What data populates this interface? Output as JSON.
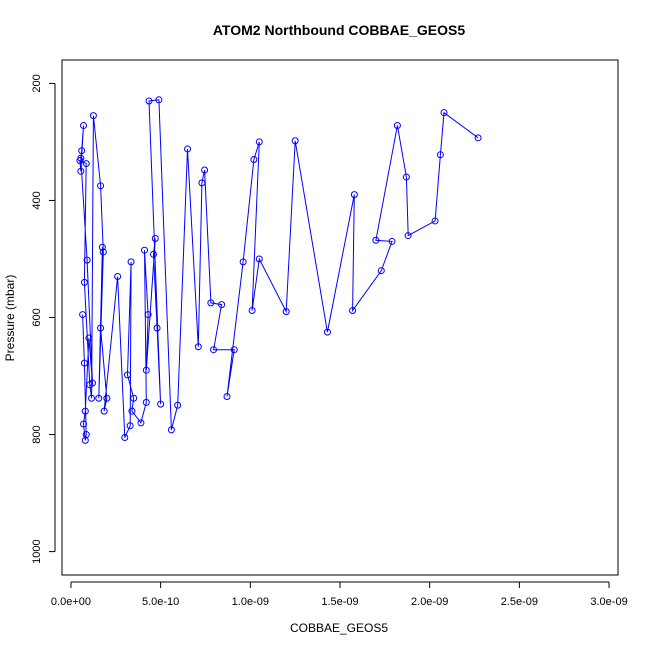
{
  "chart_data": {
    "type": "scatter",
    "title": "ATOM2 Northbound COBBAE_GEOS5",
    "xlabel": "COBBAE_GEOS5",
    "ylabel": "Pressure (mbar)",
    "xlim": [
      -5e-11,
      3.05e-09
    ],
    "ylim": [
      1040,
      160
    ],
    "y_reversed": true,
    "x_ticks": [
      {
        "value": 0,
        "label": "0.0e+00"
      },
      {
        "value": 5e-10,
        "label": "5.0e-10"
      },
      {
        "value": 1e-09,
        "label": "1.0e-09"
      },
      {
        "value": 1.5e-09,
        "label": "1.5e-09"
      },
      {
        "value": 2e-09,
        "label": "2.0e-09"
      },
      {
        "value": 2.5e-09,
        "label": "2.5e-09"
      },
      {
        "value": 3e-09,
        "label": "3.0e-09"
      }
    ],
    "y_ticks": [
      {
        "value": 200,
        "label": "200"
      },
      {
        "value": 400,
        "label": "400"
      },
      {
        "value": 600,
        "label": "600"
      },
      {
        "value": 800,
        "label": "800"
      },
      {
        "value": 1000,
        "label": "1000"
      }
    ],
    "color": "#0000ff",
    "marker": "open-circle",
    "grid": false,
    "series": [
      {
        "x": [
          6.5e-11,
          7.5e-11,
          8.5e-11,
          8e-11,
          7e-11,
          8e-11,
          1e-10,
          1.2e-10,
          9e-11,
          5.5e-11,
          6e-11,
          7e-11,
          5.5e-11,
          5e-11,
          8.5e-11,
          7.5e-11,
          1.05e-10,
          1.15e-10,
          1.25e-10,
          1.65e-10,
          1.8e-10,
          1.55e-10,
          1.75e-10,
          1.65e-10,
          2e-10,
          1.85e-10,
          2.6e-10,
          3e-10,
          3.3e-10,
          3.35e-10,
          3.15e-10,
          3.5e-10,
          3.4e-10,
          3.9e-10,
          4.2e-10,
          4.1e-10,
          4.3e-10,
          4.2e-10,
          4.7e-10,
          4.6e-10,
          4.8e-10,
          5e-10,
          4.35e-10,
          4.9e-10,
          5.6e-10,
          5.95e-10,
          6.5e-10,
          7.1e-10,
          7.3e-10,
          7.45e-10,
          7.8e-10,
          8.4e-10,
          7.95e-10,
          9.1e-10,
          8.7e-10,
          9.6e-10,
          1.02e-09,
          1.05e-09,
          1.01e-09,
          1.05e-09,
          1.2e-09,
          1.25e-09,
          1.43e-09,
          1.58e-09,
          1.57e-09,
          1.73e-09,
          1.79e-09,
          1.7e-09,
          1.82e-09,
          1.87e-09,
          1.88e-09,
          2.03e-09,
          2.06e-09,
          2.08e-09,
          2.27e-09
        ],
        "y": [
          595,
          678,
          800,
          810,
          782,
          760,
          635,
          712,
          502,
          328,
          315,
          272,
          350,
          332,
          337,
          540,
          715,
          738,
          255,
          375,
          488,
          738,
          480,
          618,
          738,
          760,
          530,
          805,
          785,
          505,
          698,
          738,
          760,
          780,
          745,
          485,
          595,
          690,
          465,
          492,
          618,
          748,
          230,
          228,
          792,
          750,
          312,
          650,
          370,
          348,
          575,
          578,
          655,
          655,
          735,
          505,
          330,
          300,
          588,
          500,
          590,
          298,
          625,
          390,
          588,
          520,
          470,
          468,
          272,
          360,
          460,
          435,
          322,
          250,
          293
        ]
      }
    ]
  }
}
